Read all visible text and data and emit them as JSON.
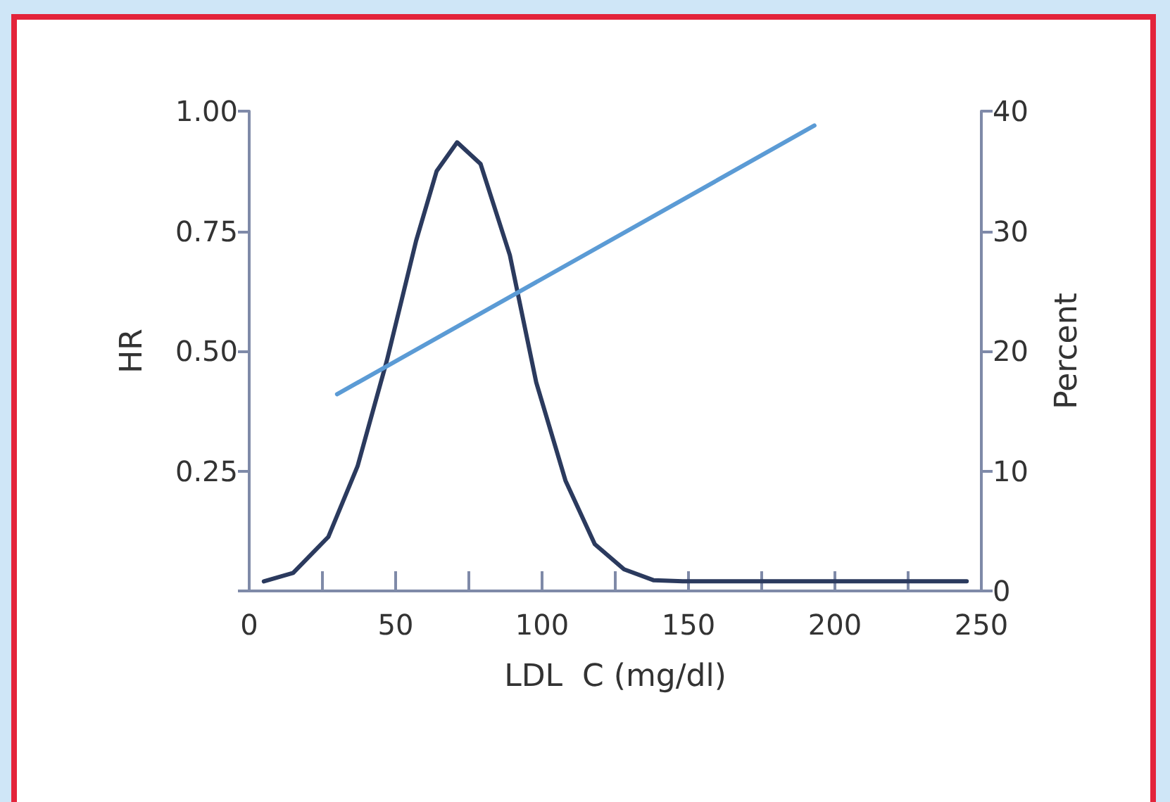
{
  "chart_data": {
    "type": "line",
    "xlabel": "LDL  C (mg/dl)",
    "ylabel": "HR",
    "y2label": "Percent",
    "xlim": [
      0,
      250
    ],
    "xticks": [
      0,
      {
        "value": 25,
        "label": null
      },
      50,
      {
        "value": 75,
        "label": null
      },
      100,
      {
        "value": 125,
        "label": null
      },
      150,
      {
        "value": 175,
        "label": null
      },
      200,
      {
        "value": 225,
        "label": null
      },
      250
    ],
    "ylim": [
      0,
      1
    ],
    "yticks": [
      {
        "value": 0,
        "label": null
      },
      {
        "value": 0.25,
        "label": "0.25"
      },
      {
        "value": 0.5,
        "label": "0.50"
      },
      {
        "value": 0.75,
        "label": "0.75"
      },
      {
        "value": 1,
        "label": "1.00"
      }
    ],
    "y2lim": [
      0,
      40
    ],
    "y2ticks": [
      0,
      10,
      20,
      30,
      40
    ],
    "series": [
      {
        "color": "#2b3a5e",
        "axis": "y2",
        "x": [
          5,
          15,
          27,
          37,
          47,
          57,
          64,
          71,
          79,
          89,
          98,
          108,
          118,
          128,
          138,
          148,
          245
        ],
        "values": [
          0.8,
          1.5,
          4.5,
          10.4,
          19.2,
          29.2,
          35,
          37.4,
          35.6,
          28,
          17.4,
          9.2,
          3.9,
          1.8,
          0.9,
          0.8,
          0.8
        ]
      },
      {
        "color": "#5b9bd5",
        "x": [
          30,
          193
        ],
        "values": [
          0.41,
          0.97
        ]
      }
    ],
    "grid": false,
    "marker": "none",
    "line_style": "solid"
  }
}
